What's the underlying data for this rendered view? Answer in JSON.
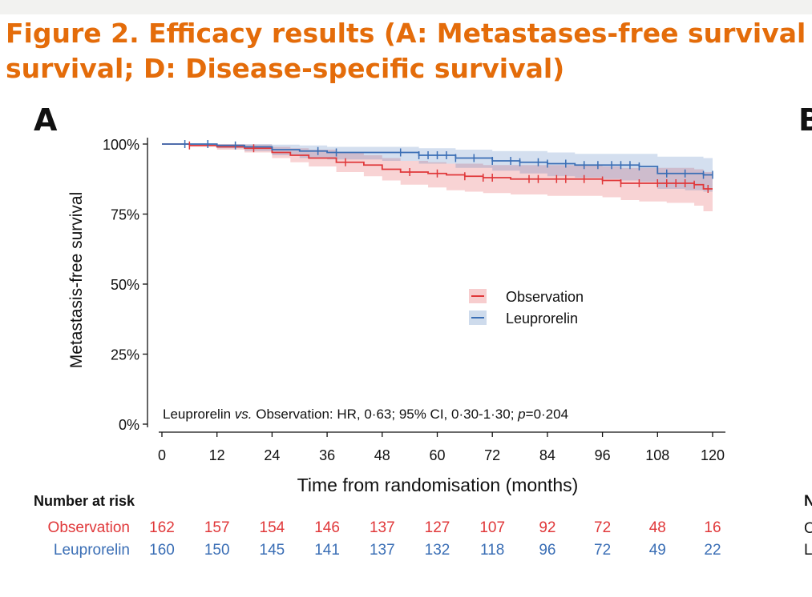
{
  "figure_title_line1": "Figure 2. Efficacy results (A: Metastases-free survival",
  "figure_title_line2": "survival; D: Disease-specific survival)",
  "panel_letter_a": "A",
  "panel_letter_b": "B",
  "colors": {
    "title": "#e46c0a",
    "observation": "#e0383a",
    "leuprorelin": "#3a6eb5"
  },
  "chart_data": {
    "type": "line",
    "subtype": "kaplan-meier",
    "title": "",
    "xlabel": "Time from randomisation (months)",
    "ylabel": "Metastasis-free survival",
    "xlim": [
      0,
      120
    ],
    "ylim": [
      0,
      100
    ],
    "x_ticks": [
      0,
      12,
      24,
      36,
      48,
      60,
      72,
      84,
      96,
      108,
      120
    ],
    "y_ticks": [
      0,
      25,
      50,
      75,
      100
    ],
    "y_tick_labels": [
      "0%",
      "25%",
      "50%",
      "75%",
      "100%"
    ],
    "legend": {
      "position": "center-right",
      "entries": [
        "Observation",
        "Leuprorelin"
      ]
    },
    "annotation": {
      "prefix": "Leuprorelin ",
      "vs": "vs.",
      "middle": " Observation: HR, 0·63; 95% CI, 0·30-1·30; ",
      "p": "p",
      "suffix": "=0·204"
    },
    "series": [
      {
        "name": "Observation",
        "color": "#e0383a",
        "x": [
          0,
          6,
          12,
          18,
          24,
          28,
          32,
          38,
          44,
          48,
          52,
          58,
          62,
          66,
          70,
          76,
          84,
          90,
          96,
          100,
          104,
          110,
          116,
          118,
          120
        ],
        "y": [
          100,
          99.5,
          99,
          98.5,
          97,
          96,
          95,
          93.5,
          92.5,
          91,
          90,
          89.5,
          89,
          88.5,
          88,
          87.5,
          87.5,
          87.5,
          87,
          86,
          86,
          86,
          85.5,
          84,
          84
        ],
        "ci_low": [
          100,
          99,
          98,
          97,
          95,
          93.5,
          92,
          90,
          88.5,
          87,
          85.5,
          84.5,
          83.5,
          83,
          82.5,
          82,
          81.5,
          81.5,
          81,
          80,
          79.5,
          79,
          78,
          76,
          76
        ],
        "ci_high": [
          100,
          100,
          100,
          99.8,
          99,
          98.5,
          98,
          97,
          96,
          95,
          94,
          93.5,
          93,
          93,
          92.5,
          92.5,
          92.5,
          92.5,
          92,
          91.5,
          91.5,
          91.5,
          91,
          90,
          90
        ],
        "censor_x": [
          6,
          20,
          40,
          54,
          60,
          66,
          70,
          72,
          80,
          82,
          86,
          88,
          92,
          96,
          100,
          104,
          108,
          110,
          112,
          114,
          116,
          119
        ]
      },
      {
        "name": "Leuprorelin",
        "color": "#3a6eb5",
        "x": [
          0,
          6,
          12,
          18,
          24,
          30,
          36,
          48,
          56,
          64,
          72,
          78,
          84,
          90,
          96,
          100,
          104,
          108,
          114,
          118,
          120
        ],
        "y": [
          100,
          100,
          99.5,
          99,
          98,
          97.5,
          97,
          97,
          96,
          95,
          94,
          93.5,
          93,
          92.5,
          92.5,
          92.5,
          92,
          89.5,
          89.5,
          89,
          89
        ],
        "ci_low": [
          100,
          99.5,
          98.5,
          97.5,
          96,
          95,
          94.5,
          94,
          93,
          91.5,
          90.5,
          89.5,
          88.5,
          88,
          87.5,
          87,
          86.5,
          84,
          83.5,
          83,
          83
        ],
        "ci_high": [
          100,
          100,
          100,
          100,
          99.8,
          99.5,
          99,
          99,
          98.5,
          98,
          97.5,
          97.5,
          97,
          96.5,
          96.5,
          96.5,
          96.5,
          95.5,
          95.5,
          95,
          95
        ],
        "censor_x": [
          5,
          10,
          16,
          34,
          38,
          52,
          56,
          58,
          60,
          62,
          64,
          68,
          72,
          76,
          78,
          82,
          84,
          88,
          92,
          95,
          98,
          100,
          102,
          104,
          110,
          114,
          118,
          120
        ]
      }
    ]
  },
  "risk_table": {
    "header": "Number at risk",
    "rows": [
      {
        "label": "Observation",
        "values": [
          162,
          157,
          154,
          146,
          137,
          127,
          107,
          92,
          72,
          48,
          16
        ]
      },
      {
        "label": "Leuprorelin",
        "values": [
          160,
          150,
          145,
          141,
          137,
          132,
          118,
          96,
          72,
          49,
          22
        ]
      }
    ]
  },
  "next_panel_edge": {
    "header_initial": "N",
    "row1_initial": "O",
    "row2_initial": "L"
  }
}
